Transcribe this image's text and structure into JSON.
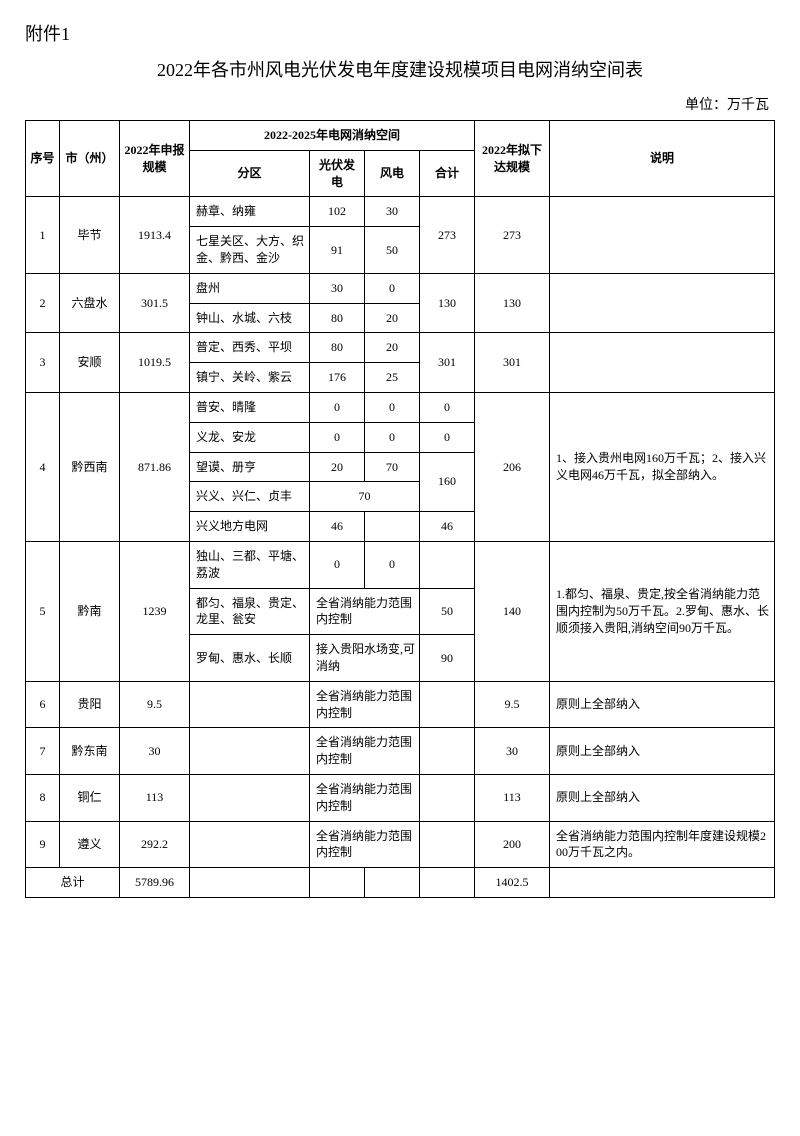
{
  "attachment_label": "附件1",
  "title": "2022年各市州风电光伏发电年度建设规模项目电网消纳空间表",
  "unit_label": "单位：万千瓦",
  "headers": {
    "seq": "序号",
    "city": "市（州）",
    "declared": "2022年申报规模",
    "absorb_span": "2022-2025年电网消纳空间",
    "zone": "分区",
    "pv": "光伏发电",
    "wind": "风电",
    "subtotal": "合计",
    "planned": "2022年拟下达规模",
    "note": "说明"
  },
  "rows": {
    "r1": {
      "seq": "1",
      "city": "毕节",
      "declared": "1913.4",
      "zones": [
        {
          "zone": "赫章、纳雍",
          "pv": "102",
          "wind": "30"
        },
        {
          "zone": "七星关区、大方、织金、黔西、金沙",
          "pv": "91",
          "wind": "50"
        }
      ],
      "subtotal": "273",
      "planned": "273",
      "note": ""
    },
    "r2": {
      "seq": "2",
      "city": "六盘水",
      "declared": "301.5",
      "zones": [
        {
          "zone": "盘州",
          "pv": "30",
          "wind": "0"
        },
        {
          "zone": "钟山、水城、六枝",
          "pv": "80",
          "wind": "20"
        }
      ],
      "subtotal": "130",
      "planned": "130",
      "note": ""
    },
    "r3": {
      "seq": "3",
      "city": "安顺",
      "declared": "1019.5",
      "zones": [
        {
          "zone": "普定、西秀、平坝",
          "pv": "80",
          "wind": "20"
        },
        {
          "zone": "镇宁、关岭、紫云",
          "pv": "176",
          "wind": "25"
        }
      ],
      "subtotal": "301",
      "planned": "301",
      "note": ""
    },
    "r4": {
      "seq": "4",
      "city": "黔西南",
      "declared": "871.86",
      "zones": [
        {
          "zone": "普安、晴隆",
          "pv": "0",
          "wind": "0",
          "subtotal": "0"
        },
        {
          "zone": "义龙、安龙",
          "pv": "0",
          "wind": "0",
          "subtotal": "0"
        },
        {
          "zone": "望谟、册亨",
          "pv": "20",
          "wind": "70"
        },
        {
          "zone": "兴义、兴仁、贞丰",
          "merged_pv_wind": "70",
          "subtotal_merge": "160"
        },
        {
          "zone": "兴义地方电网",
          "pv": "46",
          "wind": "",
          "subtotal": "46"
        }
      ],
      "planned": "206",
      "note": "1、接入贵州电网160万千瓦；2、接入兴义电网46万千瓦，拟全部纳入。"
    },
    "r5": {
      "seq": "5",
      "city": "黔南",
      "declared": "1239",
      "zones": [
        {
          "zone": "独山、三都、平塘、荔波",
          "pv": "0",
          "wind": "0"
        },
        {
          "zone": "都匀、福泉、贵定、龙里、瓮安",
          "merged_text": "全省消纳能力范围内控制",
          "subtotal": "50"
        },
        {
          "zone": "罗甸、惠水、长顺",
          "merged_text": "接入贵阳水场变,可消纳",
          "subtotal": "90"
        }
      ],
      "planned": "140",
      "note": "1.都匀、福泉、贵定,按全省消纳能力范围内控制为50万千瓦。2.罗甸、惠水、长顺须接入贵阳,消纳空间90万千瓦。"
    },
    "r6": {
      "seq": "6",
      "city": "贵阳",
      "declared": "9.5",
      "zone": "",
      "merged_text": "全省消纳能力范围内控制",
      "subtotal": "",
      "planned": "9.5",
      "note": "原则上全部纳入"
    },
    "r7": {
      "seq": "7",
      "city": "黔东南",
      "declared": "30",
      "zone": "",
      "merged_text": "全省消纳能力范围内控制",
      "subtotal": "",
      "planned": "30",
      "note": "原则上全部纳入"
    },
    "r8": {
      "seq": "8",
      "city": "铜仁",
      "declared": "113",
      "zone": "",
      "merged_text": "全省消纳能力范围内控制",
      "subtotal": "",
      "planned": "113",
      "note": "原则上全部纳入"
    },
    "r9": {
      "seq": "9",
      "city": "遵义",
      "declared": "292.2",
      "zone": "",
      "merged_text": "全省消纳能力范围内控制",
      "subtotal": "",
      "planned": "200",
      "note": "全省消纳能力范围内控制年度建设规模200万千瓦之内。"
    }
  },
  "total": {
    "label": "总计",
    "declared": "5789.96",
    "planned": "1402.5"
  }
}
